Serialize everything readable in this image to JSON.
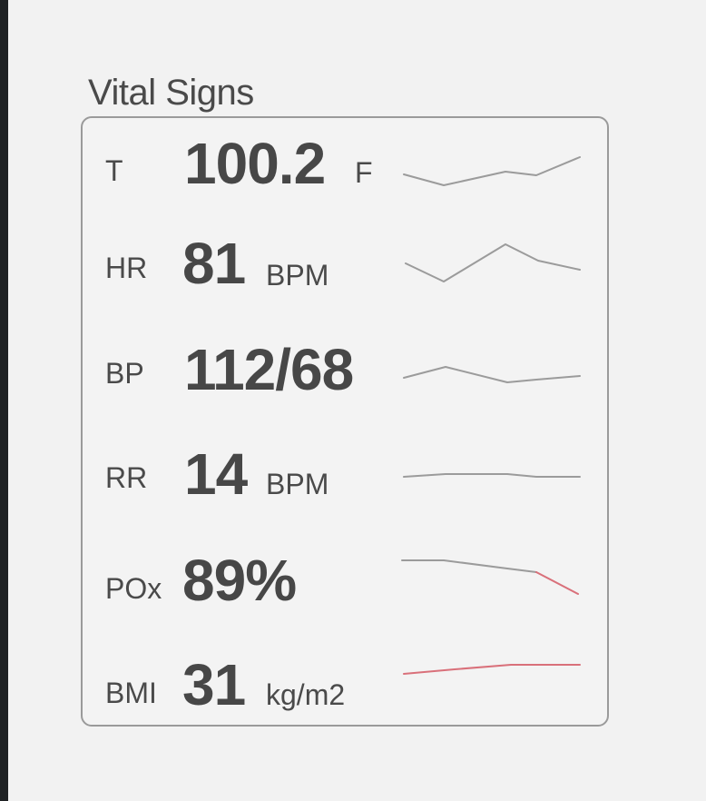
{
  "panel": {
    "title": "Vital Signs"
  },
  "colors": {
    "normal_trend": "#9b9b9b",
    "abnormal_trend": "#d9707a"
  },
  "vitals": [
    {
      "abbr": "T",
      "value": "100.2",
      "unit": "F",
      "trend_status": "normal"
    },
    {
      "abbr": "HR",
      "value": "81",
      "unit": "BPM",
      "trend_status": "normal"
    },
    {
      "abbr": "BP",
      "value": "112/68",
      "unit": "",
      "trend_status": "normal"
    },
    {
      "abbr": "RR",
      "value": "14",
      "unit": "BPM",
      "trend_status": "normal"
    },
    {
      "abbr": "POx",
      "value": "89%",
      "unit": "",
      "trend_status": "abnormal"
    },
    {
      "abbr": "BMI",
      "value": "31",
      "unit": "kg/m2",
      "trend_status": "abnormal"
    }
  ]
}
